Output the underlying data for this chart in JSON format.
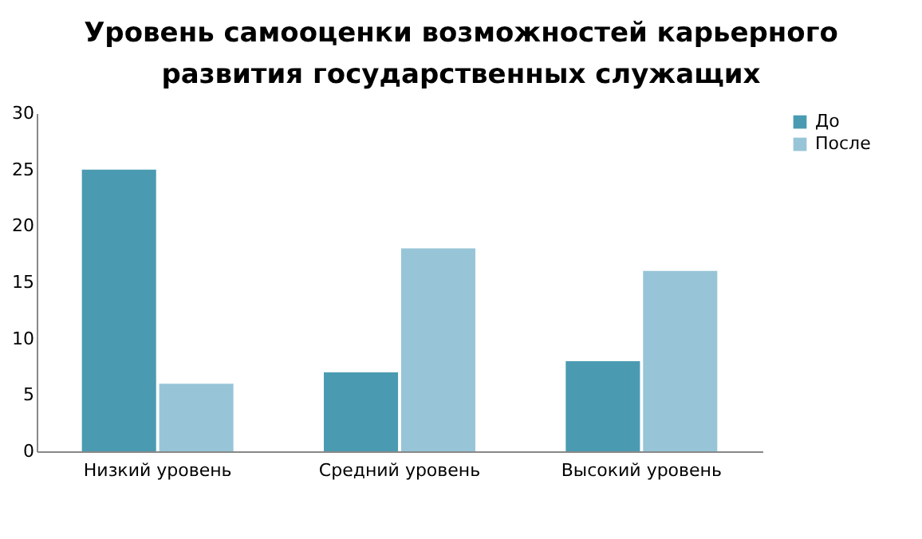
{
  "chart_data": {
    "type": "bar",
    "title": "Уровень самооценки возможностей карьерного развития государственных служащих",
    "categories": [
      "Низкий уровень",
      "Средний уровень",
      "Высокий уровень"
    ],
    "series": [
      {
        "name": "До",
        "color": "#4a9bb1",
        "values": [
          25,
          7,
          8
        ]
      },
      {
        "name": "После",
        "color": "#97c5d7",
        "values": [
          6,
          18,
          16
        ]
      }
    ],
    "ylim": [
      0,
      30
    ],
    "yticks": [
      0,
      5,
      10,
      15,
      20,
      25,
      30
    ],
    "grid": false,
    "legend": "right"
  }
}
